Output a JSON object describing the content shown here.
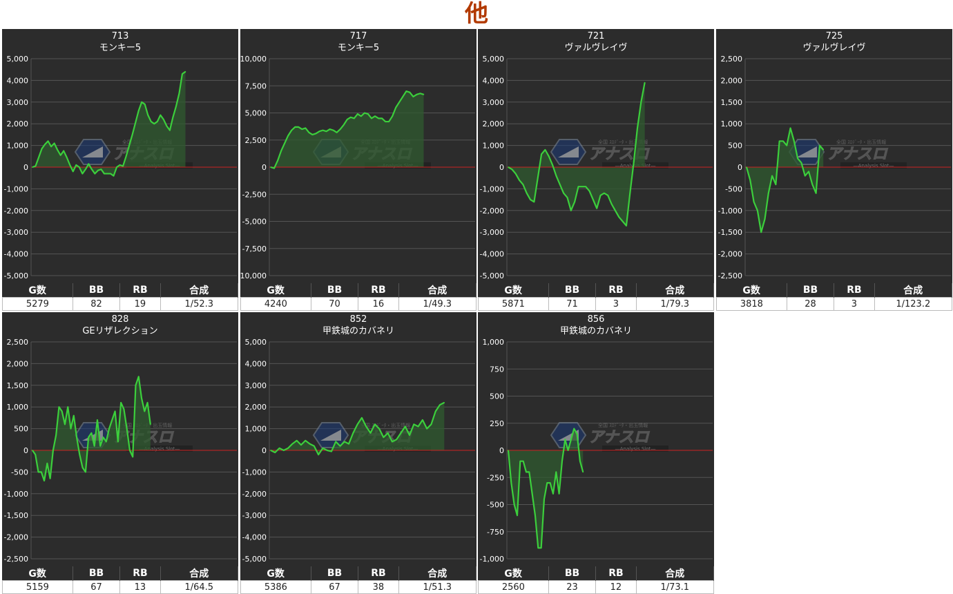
{
  "page": {
    "title": "他"
  },
  "colors": {
    "line": "#3ccf3c",
    "fill": "#2f5a2f",
    "zero_line": "#cc2222",
    "panel": "#2c2c2c",
    "grid": "#555555"
  },
  "watermark": {
    "top_text": "全国 ｽﾛﾃﾞｰﾀ・出玉情報",
    "main_text": "アナスロ",
    "sub_text": "―Analysis Slot―",
    "icon": "shield-logo-icon"
  },
  "table_headers": [
    "G数",
    "BB",
    "RB",
    "合成"
  ],
  "chart_data": [
    {
      "type": "line",
      "machine_no": "713",
      "model": "モンキー5",
      "ylim": [
        -5000,
        5000
      ],
      "yticks": [
        5000,
        4000,
        3000,
        2000,
        1000,
        0,
        -1000,
        -2000,
        -3000,
        -4000,
        -5000
      ],
      "tick_labels": [
        "5,000",
        "4,000",
        "3,000",
        "2,000",
        "1,000",
        "0",
        "-1,000",
        "-2,000",
        "-3,000",
        "-4,000",
        "-5,000"
      ],
      "fill_ratio": 0.75,
      "values": [
        0,
        50,
        450,
        850,
        1050,
        1200,
        950,
        1100,
        800,
        550,
        750,
        450,
        100,
        -200,
        100,
        0,
        -300,
        -100,
        150,
        -100,
        -300,
        -150,
        -100,
        -300,
        -300,
        -300,
        -400,
        0,
        100,
        50,
        500,
        1000,
        1500,
        2050,
        2600,
        3000,
        2900,
        2400,
        2100,
        2000,
        2100,
        2400,
        2200,
        1900,
        1700,
        2300,
        2800,
        3400,
        4300,
        4400
      ],
      "stats": {
        "games": "5279",
        "bb": "82",
        "rb": "19",
        "ratio": "1/52.3"
      }
    },
    {
      "type": "line",
      "machine_no": "717",
      "model": "モンキー5",
      "ylim": [
        -10000,
        10000
      ],
      "yticks": [
        10000,
        7500,
        5000,
        2500,
        0,
        -2500,
        -5000,
        -7500,
        -10000
      ],
      "tick_labels": [
        "10,000",
        "7,500",
        "5,000",
        "2,500",
        "0",
        "-2,500",
        "-5,000",
        "-7,500",
        "-10,000"
      ],
      "fill_ratio": 0.75,
      "values": [
        0,
        -100,
        600,
        1500,
        2200,
        2900,
        3400,
        3700,
        3700,
        3500,
        3600,
        3200,
        3000,
        3100,
        3300,
        3400,
        3300,
        3500,
        3400,
        3200,
        3500,
        3900,
        4400,
        4600,
        4500,
        4900,
        4700,
        5000,
        4900,
        4500,
        4700,
        4500,
        4500,
        4200,
        4200,
        4700,
        5500,
        6000,
        6500,
        7000,
        6900,
        6500,
        6700,
        6800,
        6700
      ],
      "stats": {
        "games": "4240",
        "bb": "70",
        "rb": "16",
        "ratio": "1/49.3"
      }
    },
    {
      "type": "line",
      "machine_no": "721",
      "model": "ヴァルヴレイヴ",
      "ylim": [
        -5000,
        5000
      ],
      "yticks": [
        5000,
        4000,
        3000,
        2000,
        1000,
        0,
        -1000,
        -2000,
        -3000,
        -4000,
        -5000
      ],
      "tick_labels": [
        "5,000",
        "4,000",
        "3,000",
        "2,000",
        "1,000",
        "0",
        "-1,000",
        "-2,000",
        "-3,000",
        "-4,000",
        "-5,000"
      ],
      "fill_ratio": 0.67,
      "values": [
        0,
        -100,
        -300,
        -600,
        -800,
        -1200,
        -1500,
        -1600,
        -500,
        600,
        800,
        500,
        100,
        -400,
        -800,
        -1200,
        -1400,
        -2000,
        -1600,
        -900,
        -900,
        -900,
        -1100,
        -1500,
        -1900,
        -1300,
        -1200,
        -1300,
        -1700,
        -2000,
        -2300,
        -2500,
        -2700,
        -1200,
        200,
        1800,
        3000,
        3900
      ],
      "stats": {
        "games": "5871",
        "bb": "71",
        "rb": "3",
        "ratio": "1/79.3"
      }
    },
    {
      "type": "line",
      "machine_no": "725",
      "model": "ヴァルヴレイヴ",
      "ylim": [
        -2500,
        2500
      ],
      "yticks": [
        2500,
        2000,
        1500,
        1000,
        500,
        0,
        -500,
        -1000,
        -1500,
        -2000,
        -2500
      ],
      "tick_labels": [
        "2,500",
        "2,000",
        "1,500",
        "1,000",
        "500",
        "0",
        "-500",
        "-1,000",
        "-1,500",
        "-2,000",
        "-2,500"
      ],
      "fill_ratio": 0.38,
      "values": [
        0,
        -300,
        -800,
        -1000,
        -1500,
        -1200,
        -600,
        -200,
        -400,
        600,
        600,
        500,
        900,
        600,
        200,
        100,
        -200,
        -100,
        -400,
        -600,
        500,
        400
      ],
      "stats": {
        "games": "3818",
        "bb": "28",
        "rb": "3",
        "ratio": "1/123.2"
      }
    },
    {
      "type": "line",
      "machine_no": "828",
      "model": "GEリザレクション",
      "ylim": [
        -2500,
        2500
      ],
      "yticks": [
        2500,
        2000,
        1500,
        1000,
        500,
        0,
        -500,
        -1000,
        -1500,
        -2000,
        -2500
      ],
      "tick_labels": [
        "2,500",
        "2,000",
        "1,500",
        "1,000",
        "500",
        "0",
        "-500",
        "-1,000",
        "-1,500",
        "-2,000",
        "-2,500"
      ],
      "fill_ratio": 0.58,
      "values": [
        0,
        -100,
        -500,
        -500,
        -700,
        -300,
        -650,
        0,
        350,
        1000,
        900,
        600,
        1000,
        500,
        800,
        300,
        -100,
        -400,
        -500,
        300,
        400,
        100,
        700,
        100,
        300,
        200,
        500,
        700,
        900,
        200,
        1100,
        950,
        500,
        0,
        -150,
        1500,
        1700,
        1200,
        900,
        1100,
        600
      ],
      "stats": {
        "games": "5159",
        "bb": "67",
        "rb": "13",
        "ratio": "1/64.5"
      }
    },
    {
      "type": "line",
      "machine_no": "852",
      "model": "甲鉄城のカバネリ",
      "ylim": [
        -5000,
        5000
      ],
      "yticks": [
        5000,
        4000,
        3000,
        2000,
        1000,
        0,
        -1000,
        -2000,
        -3000,
        -4000,
        -5000
      ],
      "tick_labels": [
        "5,000",
        "4,000",
        "3,000",
        "2,000",
        "1,000",
        "0",
        "-1,000",
        "-2,000",
        "-3,000",
        "-4,000",
        "-5,000"
      ],
      "fill_ratio": 0.85,
      "values": [
        0,
        -100,
        100,
        0,
        100,
        300,
        450,
        250,
        450,
        300,
        200,
        -200,
        100,
        0,
        -50,
        400,
        200,
        400,
        300,
        800,
        1200,
        1500,
        1100,
        800,
        1200,
        1000,
        600,
        800,
        400,
        500,
        800,
        1100,
        700,
        1200,
        1100,
        1400,
        1000,
        1200,
        1800,
        2100,
        2200
      ],
      "stats": {
        "games": "5386",
        "bb": "67",
        "rb": "38",
        "ratio": "1/51.3"
      }
    },
    {
      "type": "line",
      "machine_no": "856",
      "model": "甲鉄城のカバネリ",
      "ylim": [
        -1000,
        1000
      ],
      "yticks": [
        1000,
        750,
        500,
        250,
        0,
        -250,
        -500,
        -750,
        -1000
      ],
      "tick_labels": [
        "1,000",
        "750",
        "500",
        "250",
        "0",
        "-250",
        "-500",
        "-750",
        "-1,000"
      ],
      "fill_ratio": 0.37,
      "values": [
        0,
        -300,
        -500,
        -600,
        -100,
        -100,
        -200,
        -200,
        -400,
        -600,
        -900,
        -900,
        -450,
        -300,
        -300,
        -400,
        -200,
        -400,
        -100,
        100,
        0,
        100,
        200,
        150,
        -100,
        -200
      ],
      "stats": {
        "games": "2560",
        "bb": "23",
        "rb": "12",
        "ratio": "1/73.1"
      }
    }
  ]
}
